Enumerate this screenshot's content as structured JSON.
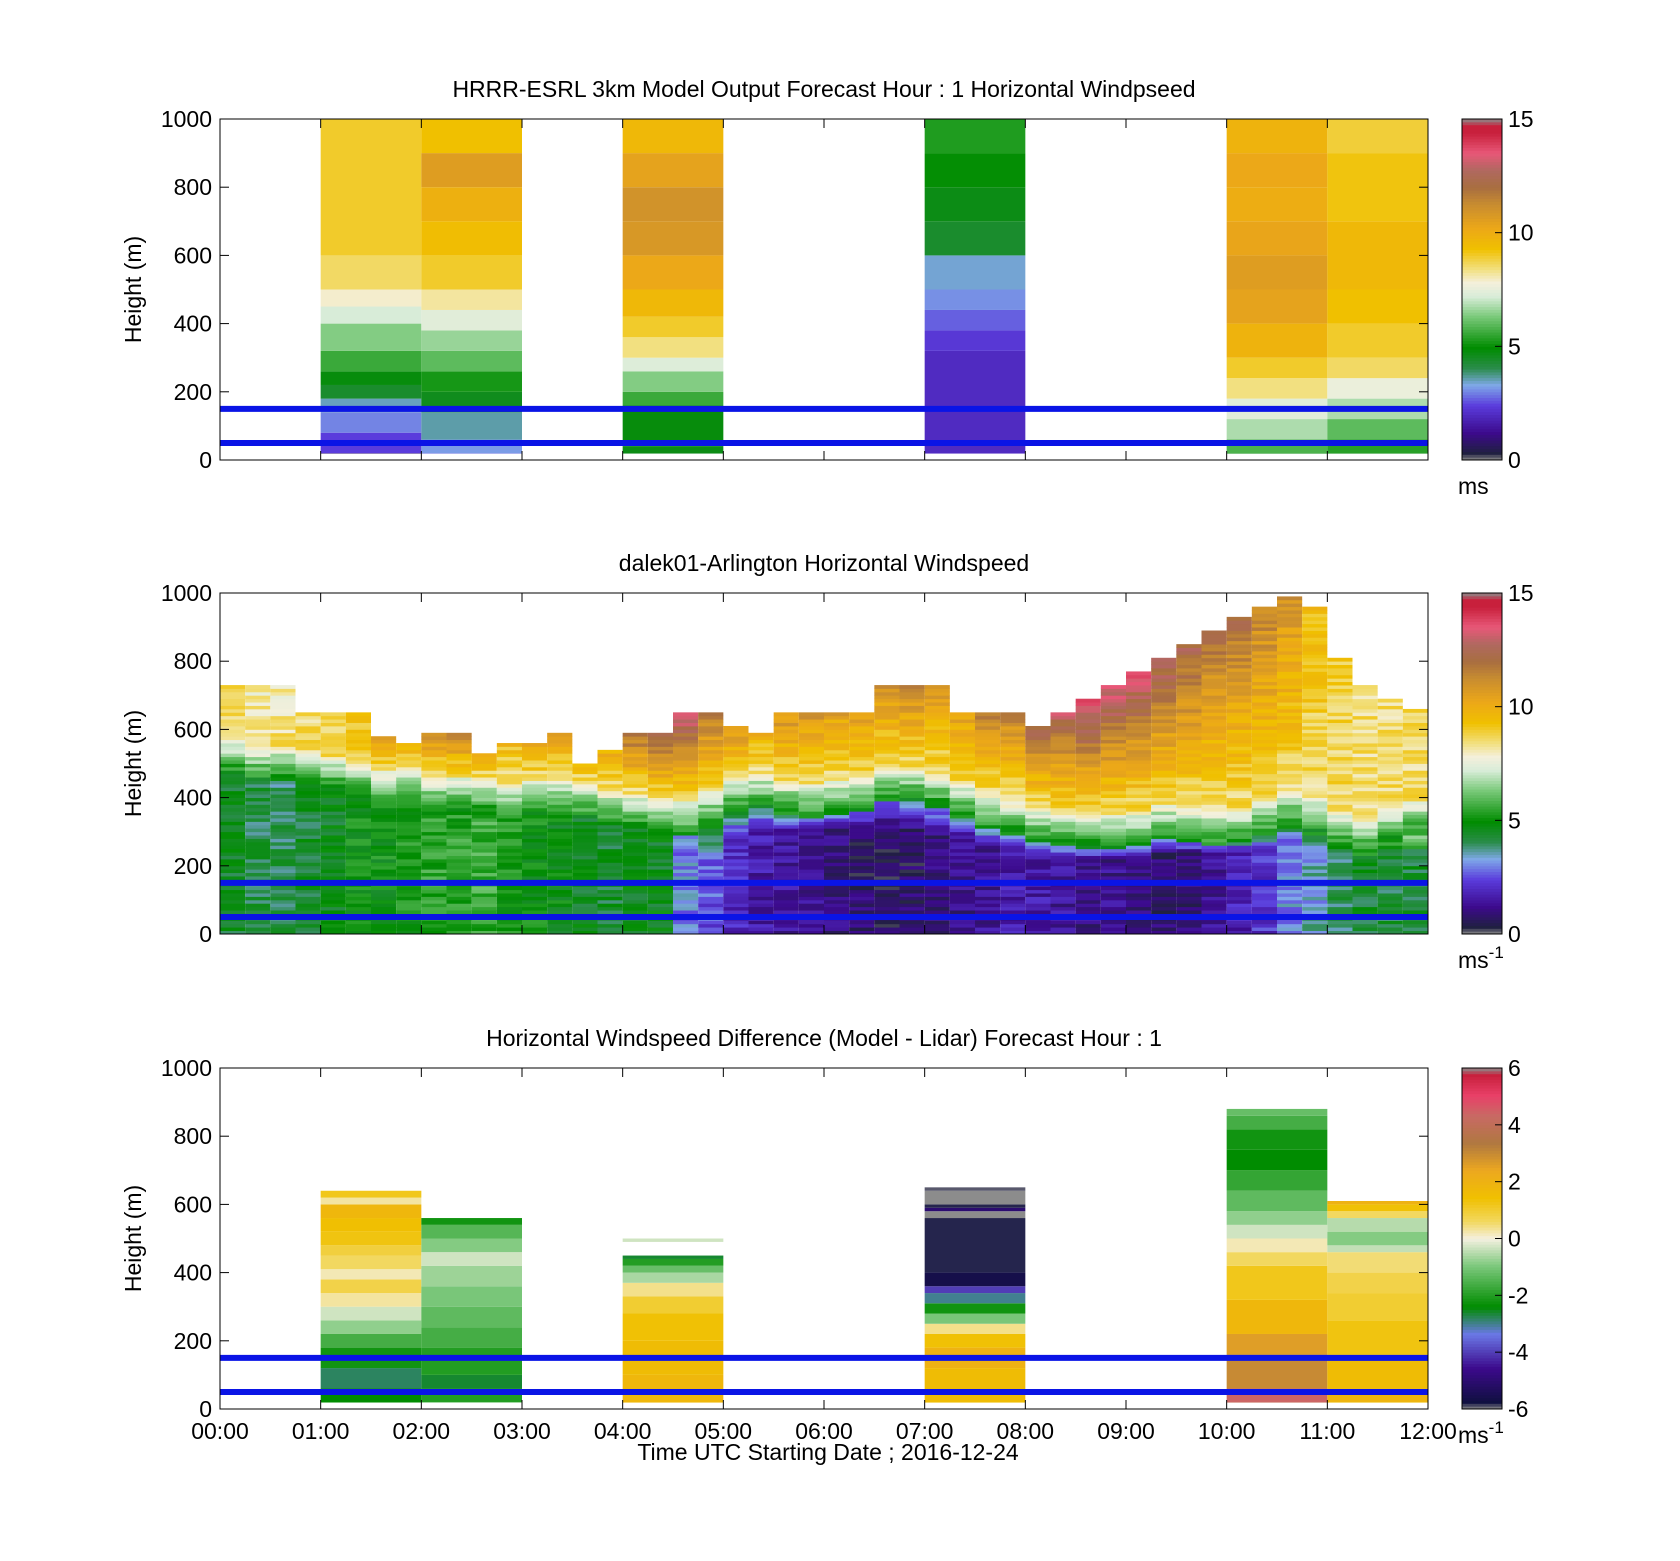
{
  "figure": {
    "xlabel": "Time UTC  Starting Date ; 2016-12-24"
  },
  "chart_data": [
    {
      "type": "heatmap",
      "title": "HRRR-ESRL 3km Model Output   Forecast Hour : 1 Horizontal Windpseed",
      "xlabel": "",
      "ylabel": "Height (m)",
      "xlim": [
        0,
        12
      ],
      "ylim": [
        0,
        1000
      ],
      "y_ticks": [
        0,
        200,
        400,
        600,
        800,
        1000
      ],
      "colorbar": {
        "min": 0,
        "max": 15,
        "ticks": [
          "0",
          "5",
          "10",
          "15"
        ],
        "unit": "ms",
        "unit_sup": ""
      },
      "hlines": [
        50,
        150
      ],
      "hline_color": "#0a14e6",
      "blocks": [
        {
          "x0": 1,
          "x1": 2,
          "layers": [
            [
              20,
              0.8
            ],
            [
              80,
              2.4
            ],
            [
              140,
              3.0
            ],
            [
              180,
              3.5
            ],
            [
              220,
              4.4
            ],
            [
              260,
              4.8
            ],
            [
              320,
              5.6
            ],
            [
              400,
              6.4
            ],
            [
              450,
              7.2
            ],
            [
              500,
              7.9
            ],
            [
              600,
              8.6
            ],
            [
              1000,
              9.0
            ]
          ]
        },
        {
          "x0": 2,
          "x1": 3,
          "layers": [
            [
              20,
              2.8
            ],
            [
              60,
              3.2
            ],
            [
              140,
              3.6
            ],
            [
              200,
              4.6
            ],
            [
              260,
              5.2
            ],
            [
              320,
              6.0
            ],
            [
              380,
              6.6
            ],
            [
              440,
              7.4
            ],
            [
              500,
              8.2
            ],
            [
              600,
              9.0
            ],
            [
              700,
              9.4
            ],
            [
              800,
              9.9
            ],
            [
              900,
              10.6
            ],
            [
              1000,
              9.3
            ]
          ]
        },
        {
          "x0": 4,
          "x1": 5,
          "layers": [
            [
              20,
              4.5
            ],
            [
              40,
              4.7
            ],
            [
              160,
              4.8
            ],
            [
              200,
              5.6
            ],
            [
              260,
              6.4
            ],
            [
              300,
              7.3
            ],
            [
              360,
              8.4
            ],
            [
              420,
              9.0
            ],
            [
              500,
              9.6
            ],
            [
              600,
              10.2
            ],
            [
              700,
              10.8
            ],
            [
              800,
              11.0
            ],
            [
              900,
              10.4
            ],
            [
              1000,
              9.6
            ]
          ]
        },
        {
          "x0": 7,
          "x1": 8,
          "layers": [
            [
              20,
              2.1
            ],
            [
              320,
              2.0
            ],
            [
              380,
              2.3
            ],
            [
              440,
              2.7
            ],
            [
              500,
              3.1
            ],
            [
              600,
              3.4
            ],
            [
              700,
              4.4
            ],
            [
              800,
              4.7
            ],
            [
              900,
              5.0
            ],
            [
              1000,
              5.3
            ]
          ]
        },
        {
          "x0": 10,
          "x1": 11,
          "layers": [
            [
              20,
              4.8
            ],
            [
              60,
              5.8
            ],
            [
              120,
              6.8
            ],
            [
              180,
              7.4
            ],
            [
              240,
              8.4
            ],
            [
              300,
              9.0
            ],
            [
              400,
              9.8
            ],
            [
              500,
              10.4
            ],
            [
              600,
              10.6
            ],
            [
              700,
              10.3
            ],
            [
              800,
              10.0
            ],
            [
              900,
              10.2
            ],
            [
              1000,
              9.8
            ]
          ]
        },
        {
          "x0": 11,
          "x1": 12,
          "layers": [
            [
              20,
              4.8
            ],
            [
              60,
              5.4
            ],
            [
              120,
              6.0
            ],
            [
              180,
              6.8
            ],
            [
              240,
              7.6
            ],
            [
              300,
              8.6
            ],
            [
              400,
              9.0
            ],
            [
              500,
              9.3
            ],
            [
              700,
              9.6
            ],
            [
              900,
              9.2
            ],
            [
              1000,
              8.9
            ]
          ]
        }
      ]
    },
    {
      "type": "heatmap",
      "title": "dalek01-Arlington  Horizontal Windspeed",
      "xlabel": "",
      "ylabel": "Height (m)",
      "xlim": [
        0,
        12
      ],
      "ylim": [
        0,
        1000
      ],
      "y_ticks": [
        0,
        200,
        400,
        600,
        800,
        1000
      ],
      "colorbar": {
        "min": 0,
        "max": 15,
        "ticks": [
          "0",
          "5",
          "10",
          "15"
        ],
        "unit": "ms",
        "unit_sup": "-1"
      },
      "hlines": [
        50,
        150
      ],
      "hline_color": "#0a14e6",
      "profile": {
        "dt": 0.25,
        "times": [
          0.125,
          0.375,
          0.625,
          0.875,
          1.125,
          1.375,
          1.625,
          1.875,
          2.125,
          2.375,
          2.625,
          2.875,
          3.125,
          3.375,
          3.625,
          3.875,
          4.125,
          4.375,
          4.625,
          4.875,
          5.125,
          5.375,
          5.625,
          5.875,
          6.125,
          6.375,
          6.625,
          6.875,
          7.125,
          7.375,
          7.625,
          7.875,
          8.125,
          8.375,
          8.625,
          8.875,
          9.125,
          9.375,
          9.625,
          9.875,
          10.125,
          10.375,
          10.625,
          10.875,
          11.125,
          11.375,
          11.625,
          11.875
        ],
        "top": [
          730,
          730,
          730,
          650,
          650,
          650,
          580,
          560,
          590,
          590,
          530,
          560,
          560,
          590,
          500,
          540,
          590,
          590,
          650,
          650,
          610,
          590,
          650,
          650,
          650,
          650,
          730,
          730,
          730,
          650,
          650,
          650,
          610,
          650,
          690,
          730,
          770,
          810,
          850,
          890,
          930,
          960,
          990,
          960,
          810,
          730,
          690,
          660
        ],
        "top_speed": [
          8.5,
          8.0,
          8.0,
          8.5,
          9.0,
          9.5,
          10.5,
          10.0,
          11.0,
          11.5,
          10.0,
          9.5,
          10.0,
          10.5,
          9.5,
          10.0,
          12.0,
          13.0,
          13.5,
          12.0,
          11.0,
          10.0,
          11.0,
          11.0,
          10.5,
          10.5,
          11.0,
          11.5,
          11.0,
          10.5,
          11.5,
          11.5,
          12.5,
          13.0,
          14.0,
          13.5,
          13.5,
          13.0,
          12.5,
          12.0,
          12.0,
          11.5,
          11.0,
          9.5,
          9.0,
          8.5,
          8.5,
          8.5
        ],
        "transition": [
          530,
          510,
          510,
          500,
          480,
          460,
          440,
          440,
          420,
          420,
          410,
          400,
          410,
          410,
          400,
          380,
          370,
          360,
          350,
          380,
          420,
          430,
          410,
          400,
          410,
          420,
          450,
          450,
          430,
          400,
          370,
          350,
          330,
          320,
          310,
          310,
          320,
          340,
          330,
          320,
          330,
          350,
          380,
          360,
          320,
          300,
          330,
          350
        ],
        "low": [
          4.5,
          4.2,
          4.0,
          4.4,
          4.6,
          5.0,
          5.0,
          5.2,
          5.4,
          5.4,
          5.6,
          5.2,
          5.0,
          4.8,
          4.6,
          4.4,
          4.6,
          4.6,
          3.0,
          2.6,
          2.0,
          1.6,
          1.4,
          1.4,
          1.0,
          0.8,
          0.6,
          0.8,
          1.0,
          1.2,
          1.4,
          1.6,
          1.6,
          1.4,
          1.2,
          1.2,
          1.0,
          0.8,
          1.0,
          1.4,
          1.8,
          2.2,
          3.0,
          3.4,
          4.0,
          4.4,
          4.2,
          4.4
        ],
        "jet_height": [
          0,
          0,
          0,
          0,
          0,
          0,
          0,
          0,
          0,
          0,
          0,
          0,
          0,
          0,
          0,
          0,
          0,
          0,
          0,
          220,
          280,
          300,
          300,
          300,
          300,
          300,
          300,
          300,
          290,
          270,
          250,
          240,
          220,
          210,
          210,
          210,
          220,
          230,
          230,
          230,
          240,
          250,
          280,
          260,
          240,
          220,
          230,
          240
        ]
      }
    },
    {
      "type": "heatmap",
      "title": "Horizontal Windspeed Difference (Model - Lidar) Forecast Hour : 1",
      "xlabel": "Time UTC  Starting Date ; 2016-12-24",
      "ylabel": "Height (m)",
      "xlim": [
        0,
        12
      ],
      "ylim": [
        0,
        1000
      ],
      "y_ticks": [
        0,
        200,
        400,
        600,
        800,
        1000
      ],
      "x_ticks": [
        "00:00",
        "01:00",
        "02:00",
        "03:00",
        "04:00",
        "05:00",
        "06:00",
        "07:00",
        "08:00",
        "09:00",
        "10:00",
        "11:00",
        "12:00"
      ],
      "colorbar": {
        "min": -6,
        "max": 6,
        "ticks": [
          "-6",
          "-4",
          "-2",
          "0",
          "2",
          "4",
          "6"
        ],
        "unit": "ms",
        "unit_sup": "-1"
      },
      "hlines": [
        50,
        150
      ],
      "hline_color": "#0a14e6",
      "blocks": [
        {
          "x0": 1,
          "x1": 2,
          "layers": [
            [
              20,
              -2.0
            ],
            [
              60,
              -2.4
            ],
            [
              120,
              -2.8
            ],
            [
              180,
              -2.2
            ],
            [
              220,
              -1.6
            ],
            [
              260,
              -0.8
            ],
            [
              300,
              -0.3
            ],
            [
              340,
              0.3
            ],
            [
              380,
              0.8
            ],
            [
              410,
              0.2
            ],
            [
              450,
              0.6
            ],
            [
              480,
              0.9
            ],
            [
              520,
              1.3
            ],
            [
              560,
              1.5
            ],
            [
              600,
              1.8
            ],
            [
              620,
              0.3
            ],
            [
              640,
              1.2
            ]
          ]
        },
        {
          "x0": 2,
          "x1": 3,
          "layers": [
            [
              20,
              -1.0
            ],
            [
              60,
              -2.0
            ],
            [
              100,
              -2.6
            ],
            [
              180,
              -2.0
            ],
            [
              240,
              -1.6
            ],
            [
              300,
              -1.3
            ],
            [
              360,
              -1.0
            ],
            [
              420,
              -0.7
            ],
            [
              460,
              -0.3
            ],
            [
              500,
              -0.9
            ],
            [
              540,
              -1.4
            ],
            [
              560,
              -2.2
            ]
          ]
        },
        {
          "x0": 4,
          "x1": 5,
          "layers": [
            [
              20,
              1.7
            ],
            [
              100,
              1.8
            ],
            [
              200,
              1.6
            ],
            [
              280,
              1.4
            ],
            [
              330,
              1.0
            ],
            [
              370,
              0.4
            ],
            [
              400,
              -0.6
            ],
            [
              420,
              -1.2
            ],
            [
              440,
              -2.0
            ],
            [
              450,
              -2.6
            ],
            [
              490,
              null
            ],
            [
              500,
              -0.3
            ]
          ]
        },
        {
          "x0": 7,
          "x1": 8,
          "layers": [
            [
              20,
              1.5
            ],
            [
              120,
              1.6
            ],
            [
              180,
              2.0
            ],
            [
              220,
              1.4
            ],
            [
              250,
              0.4
            ],
            [
              280,
              -1.0
            ],
            [
              310,
              -2.2
            ],
            [
              340,
              -3.0
            ],
            [
              360,
              -4.0
            ],
            [
              400,
              -5.6
            ],
            [
              560,
              -5.8
            ],
            [
              580,
              -6.1
            ],
            [
              590,
              -5.0
            ],
            [
              600,
              -5.8
            ],
            [
              640,
              -6.1
            ],
            [
              650,
              -5.9
            ]
          ]
        },
        {
          "x0": 10,
          "x1": 11,
          "layers": [
            [
              20,
              4.0
            ],
            [
              60,
              4.4
            ],
            [
              160,
              3.0
            ],
            [
              220,
              2.6
            ],
            [
              320,
              1.8
            ],
            [
              420,
              1.2
            ],
            [
              460,
              0.6
            ],
            [
              500,
              0.2
            ],
            [
              540,
              -0.3
            ],
            [
              580,
              -0.8
            ],
            [
              640,
              -1.3
            ],
            [
              700,
              -1.8
            ],
            [
              760,
              -2.4
            ],
            [
              820,
              -2.2
            ],
            [
              860,
              -1.6
            ],
            [
              880,
              -1.2
            ]
          ]
        },
        {
          "x0": 11,
          "x1": 12,
          "layers": [
            [
              20,
              1.5
            ],
            [
              60,
              1.9
            ],
            [
              160,
              1.6
            ],
            [
              260,
              1.3
            ],
            [
              340,
              1.0
            ],
            [
              400,
              0.8
            ],
            [
              460,
              0.5
            ],
            [
              480,
              -0.4
            ],
            [
              520,
              -0.9
            ],
            [
              560,
              -0.5
            ],
            [
              580,
              0.6
            ],
            [
              600,
              1.4
            ],
            [
              610,
              2.0
            ]
          ]
        }
      ]
    }
  ]
}
